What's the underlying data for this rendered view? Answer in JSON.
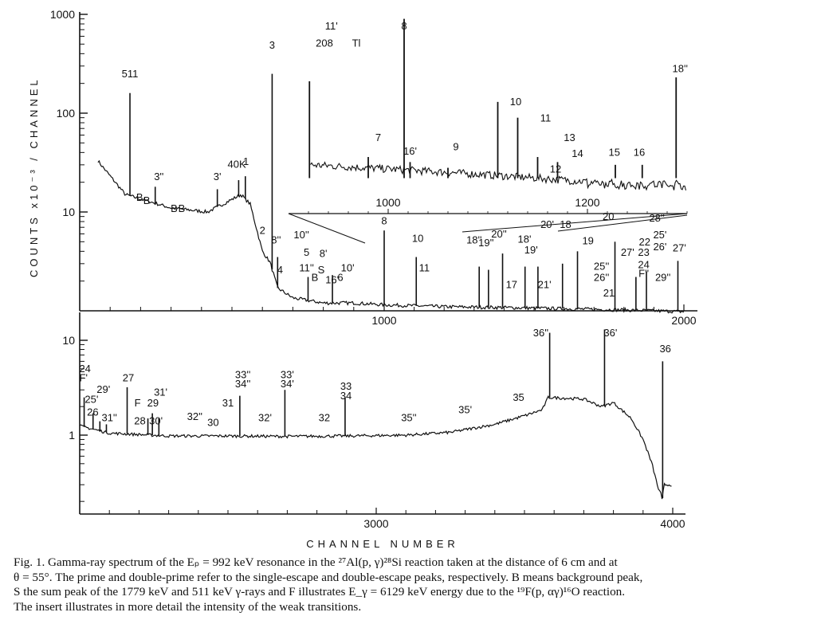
{
  "figure": {
    "caption_lines": [
      "Fig. 1. Gamma-ray spectrum of the Eₚ = 992 keV resonance in the ²⁷Al(p, γ)²⁸Si reaction taken at the distance of 6 cm and at",
      "θ = 55°. The prime and double-prime refer to the single-escape and double-escape peaks, respectively. B means background peak,",
      "S the sum peak of the 1779 keV and 511 keV γ-rays and F illustrates E_γ = 6129 keV energy due to the ¹⁹F(p, αγ)¹⁶O reaction.",
      "The insert illustrates in more detail the intensity of the weak transitions."
    ]
  },
  "chart_data": {
    "type": "line",
    "ylabel": "COUNTS x10⁻³ / CHANNEL",
    "xlabel": "CHANNEL NUMBER",
    "log_y": true,
    "upper_panel": {
      "xlim": [
        0,
        2000
      ],
      "ylim": [
        1,
        1000
      ],
      "x_ticks": [
        "1000",
        "2000"
      ],
      "y_ticks": [
        "1000",
        "100",
        "10"
      ],
      "baseline": [
        [
          0,
          60
        ],
        [
          70,
          30
        ],
        [
          150,
          15
        ],
        [
          300,
          11
        ],
        [
          420,
          10
        ],
        [
          470,
          12
        ],
        [
          530,
          15
        ],
        [
          560,
          12
        ],
        [
          600,
          4
        ],
        [
          625,
          3.1
        ],
        [
          650,
          1.7
        ],
        [
          700,
          1.35
        ],
        [
          800,
          1.2
        ],
        [
          900,
          1.2
        ],
        [
          1000,
          1.15
        ],
        [
          1200,
          1.1
        ],
        [
          1400,
          1.08
        ],
        [
          1600,
          1.05
        ],
        [
          1800,
          1.02
        ],
        [
          1900,
          1.0
        ],
        [
          2000,
          0.98
        ]
      ],
      "peaks": [
        {
          "x": 165,
          "y": 160
        },
        {
          "x": 248,
          "y": 18
        },
        {
          "x": 452,
          "y": 17
        },
        {
          "x": 522,
          "y": 21
        },
        {
          "x": 544,
          "y": 23
        },
        {
          "x": 632,
          "y": 250
        },
        {
          "x": 650,
          "y": 3.5
        },
        {
          "x": 750,
          "y": 2.2
        },
        {
          "x": 830,
          "y": 2.3
        },
        {
          "x": 1000,
          "y": 6.5
        },
        {
          "x": 1107,
          "y": 3.5
        },
        {
          "x": 1317,
          "y": 2.8
        },
        {
          "x": 1348,
          "y": 2.6
        },
        {
          "x": 1395,
          "y": 3.8
        },
        {
          "x": 1470,
          "y": 2.8
        },
        {
          "x": 1513,
          "y": 2.8
        },
        {
          "x": 1595,
          "y": 3.0
        },
        {
          "x": 1645,
          "y": 4.0
        },
        {
          "x": 1770,
          "y": 5.0
        },
        {
          "x": 1840,
          "y": 2.2
        },
        {
          "x": 1875,
          "y": 2.5
        },
        {
          "x": 1980,
          "y": 3.2
        }
      ],
      "labels": [
        {
          "text": "511",
          "x": 165,
          "y": 230
        },
        {
          "text": "B",
          "x": 197,
          "y": 13
        },
        {
          "text": "B",
          "x": 220,
          "y": 12
        },
        {
          "text": "3''",
          "x": 260,
          "y": 21
        },
        {
          "text": "B",
          "x": 310,
          "y": 10
        },
        {
          "text": "B",
          "x": 335,
          "y": 10
        },
        {
          "text": "3'",
          "x": 452,
          "y": 21
        },
        {
          "text": "40K",
          "x": 516,
          "y": 28
        },
        {
          "text": "1",
          "x": 546,
          "y": 30
        },
        {
          "text": "2",
          "x": 600,
          "y": 6
        },
        {
          "text": "3",
          "x": 632,
          "y": 450
        },
        {
          "text": "8''",
          "x": 645,
          "y": 4.8
        },
        {
          "text": "4",
          "x": 658,
          "y": 2.4
        },
        {
          "text": "10''",
          "x": 728,
          "y": 5.4
        },
        {
          "text": "5",
          "x": 745,
          "y": 3.6
        },
        {
          "text": "11''",
          "x": 745,
          "y": 2.5
        },
        {
          "text": "8'",
          "x": 800,
          "y": 3.5
        },
        {
          "text": "B",
          "x": 772,
          "y": 2.0
        },
        {
          "text": "S",
          "x": 793,
          "y": 2.4
        },
        {
          "text": "16'",
          "x": 829,
          "y": 1.9
        },
        {
          "text": "6",
          "x": 856,
          "y": 2.0
        },
        {
          "text": "10'",
          "x": 880,
          "y": 2.5
        },
        {
          "text": "8",
          "x": 1000,
          "y": 7.5
        },
        {
          "text": "10",
          "x": 1112,
          "y": 5.0
        },
        {
          "text": "11",
          "x": 1134,
          "y": 2.5
        },
        {
          "text": "18''",
          "x": 1300,
          "y": 4.8
        },
        {
          "text": "19''",
          "x": 1340,
          "y": 4.5
        },
        {
          "text": "20''",
          "x": 1383,
          "y": 5.5
        },
        {
          "text": "18'",
          "x": 1468,
          "y": 4.9
        },
        {
          "text": "17",
          "x": 1425,
          "y": 1.7
        },
        {
          "text": "19'",
          "x": 1490,
          "y": 3.8
        },
        {
          "text": "20'",
          "x": 1544,
          "y": 6.9
        },
        {
          "text": "18",
          "x": 1605,
          "y": 6.9
        },
        {
          "text": "21'",
          "x": 1535,
          "y": 1.7
        },
        {
          "text": "19",
          "x": 1680,
          "y": 4.7
        },
        {
          "text": "20",
          "x": 1748,
          "y": 8.3
        },
        {
          "text": "25''",
          "x": 1725,
          "y": 2.6
        },
        {
          "text": "26''",
          "x": 1725,
          "y": 2.0
        },
        {
          "text": "21",
          "x": 1750,
          "y": 1.4
        },
        {
          "text": "27'",
          "x": 1812,
          "y": 3.6
        },
        {
          "text": "28''",
          "x": 1910,
          "y": 8.0
        },
        {
          "text": "22",
          "x": 1869,
          "y": 4.6
        },
        {
          "text": "23",
          "x": 1866,
          "y": 3.6
        },
        {
          "text": "24",
          "x": 1866,
          "y": 2.7
        },
        {
          "text": "F''",
          "x": 1866,
          "y": 2.2
        },
        {
          "text": "25'",
          "x": 1920,
          "y": 5.4
        },
        {
          "text": "26'",
          "x": 1920,
          "y": 4.1
        },
        {
          "text": "29''",
          "x": 1930,
          "y": 2.0
        },
        {
          "text": "27'",
          "x": 1985,
          "y": 4.0
        }
      ]
    },
    "insert": {
      "xlim": [
        900,
        1300
      ],
      "x_ticks": [
        "1000",
        "1200"
      ],
      "labels": [
        {
          "text": "11'",
          "x": 943,
          "y": 700
        },
        {
          "text": "208",
          "x": 936,
          "y": 470
        },
        {
          "text": "Tl",
          "x": 968,
          "y": 470
        },
        {
          "text": "8",
          "x": 1016,
          "y": 700
        },
        {
          "text": "7",
          "x": 990,
          "y": 52
        },
        {
          "text": "16'",
          "x": 1022,
          "y": 38
        },
        {
          "text": "9",
          "x": 1068,
          "y": 42
        },
        {
          "text": "10",
          "x": 1128,
          "y": 120
        },
        {
          "text": "11",
          "x": 1158,
          "y": 82
        },
        {
          "text": "12",
          "x": 1168,
          "y": 25
        },
        {
          "text": "13",
          "x": 1182,
          "y": 52
        },
        {
          "text": "14",
          "x": 1190,
          "y": 36
        },
        {
          "text": "15",
          "x": 1227,
          "y": 37
        },
        {
          "text": "16",
          "x": 1252,
          "y": 37
        },
        {
          "text": "18''",
          "x": 1293,
          "y": 260
        }
      ],
      "peaks": [
        {
          "x": 921,
          "y": 210
        },
        {
          "x": 980,
          "y": 36
        },
        {
          "x": 1016,
          "y": 900
        },
        {
          "x": 1022,
          "y": 32
        },
        {
          "x": 1060,
          "y": 28
        },
        {
          "x": 1110,
          "y": 130
        },
        {
          "x": 1130,
          "y": 90
        },
        {
          "x": 1150,
          "y": 36
        },
        {
          "x": 1170,
          "y": 32
        },
        {
          "x": 1228,
          "y": 30
        },
        {
          "x": 1255,
          "y": 30
        },
        {
          "x": 1289,
          "y": 230
        }
      ]
    },
    "lower_panel": {
      "xlim": [
        2000,
        4000
      ],
      "ylim": [
        0.2,
        10
      ],
      "x_ticks": [
        "3000",
        "4000"
      ],
      "y_ticks": [
        "10",
        "1"
      ],
      "baseline": [
        [
          2000,
          1.25
        ],
        [
          2100,
          1.05
        ],
        [
          2300,
          0.98
        ],
        [
          2500,
          0.98
        ],
        [
          2700,
          0.97
        ],
        [
          2900,
          0.98
        ],
        [
          3100,
          1.0
        ],
        [
          3250,
          1.07
        ],
        [
          3400,
          1.3
        ],
        [
          3500,
          1.6
        ],
        [
          3560,
          1.85
        ],
        [
          3580,
          2.5
        ],
        [
          3700,
          2.4
        ],
        [
          3760,
          2.0
        ],
        [
          3800,
          2.2
        ],
        [
          3860,
          1.5
        ],
        [
          3900,
          0.9
        ],
        [
          3930,
          0.5
        ],
        [
          3950,
          0.28
        ],
        [
          3960,
          0.24
        ],
        [
          3965,
          0.2
        ],
        [
          3970,
          0.3
        ],
        [
          3990,
          0.3
        ],
        [
          4000,
          0.3
        ]
      ],
      "peaks": [
        {
          "x": 2015,
          "y": 2.5
        },
        {
          "x": 2045,
          "y": 1.7
        },
        {
          "x": 2068,
          "y": 1.4
        },
        {
          "x": 2090,
          "y": 1.3
        },
        {
          "x": 2160,
          "y": 3.2
        },
        {
          "x": 2230,
          "y": 1.5
        },
        {
          "x": 2245,
          "y": 1.7
        },
        {
          "x": 2267,
          "y": 1.5
        },
        {
          "x": 2540,
          "y": 2.6
        },
        {
          "x": 2692,
          "y": 3.0
        },
        {
          "x": 2895,
          "y": 2.5
        },
        {
          "x": 3585,
          "y": 12
        },
        {
          "x": 3770,
          "y": 13
        },
        {
          "x": 3966,
          "y": 6.0
        }
      ],
      "labels": [
        {
          "text": "24",
          "x": 2018,
          "y": 4.6
        },
        {
          "text": "F'",
          "x": 2013,
          "y": 3.7
        },
        {
          "text": "25'",
          "x": 2040,
          "y": 2.2
        },
        {
          "text": "29'",
          "x": 2080,
          "y": 2.8
        },
        {
          "text": "26",
          "x": 2044,
          "y": 1.6
        },
        {
          "text": "31''",
          "x": 2100,
          "y": 1.4
        },
        {
          "text": "27",
          "x": 2164,
          "y": 3.7
        },
        {
          "text": "F",
          "x": 2195,
          "y": 2.0
        },
        {
          "text": "28",
          "x": 2203,
          "y": 1.3
        },
        {
          "text": "29",
          "x": 2247,
          "y": 2.0
        },
        {
          "text": "31'",
          "x": 2273,
          "y": 2.6
        },
        {
          "text": "30'",
          "x": 2257,
          "y": 1.3
        },
        {
          "text": "32''",
          "x": 2388,
          "y": 1.45
        },
        {
          "text": "30",
          "x": 2450,
          "y": 1.25
        },
        {
          "text": "31",
          "x": 2500,
          "y": 2.0
        },
        {
          "text": "33''",
          "x": 2550,
          "y": 4.0
        },
        {
          "text": "34''",
          "x": 2550,
          "y": 3.2
        },
        {
          "text": "32'",
          "x": 2625,
          "y": 1.4
        },
        {
          "text": "33'",
          "x": 2700,
          "y": 4.0
        },
        {
          "text": "34'",
          "x": 2700,
          "y": 3.2
        },
        {
          "text": "32",
          "x": 2825,
          "y": 1.4
        },
        {
          "text": "33",
          "x": 2898,
          "y": 3.0
        },
        {
          "text": "34",
          "x": 2898,
          "y": 2.4
        },
        {
          "text": "35''",
          "x": 3110,
          "y": 1.4
        },
        {
          "text": "35'",
          "x": 3300,
          "y": 1.7
        },
        {
          "text": "35",
          "x": 3480,
          "y": 2.3
        },
        {
          "text": "36''",
          "x": 3555,
          "y": 11
        },
        {
          "text": "36'",
          "x": 3790,
          "y": 11
        },
        {
          "text": "36",
          "x": 3975,
          "y": 7.5
        }
      ]
    }
  }
}
